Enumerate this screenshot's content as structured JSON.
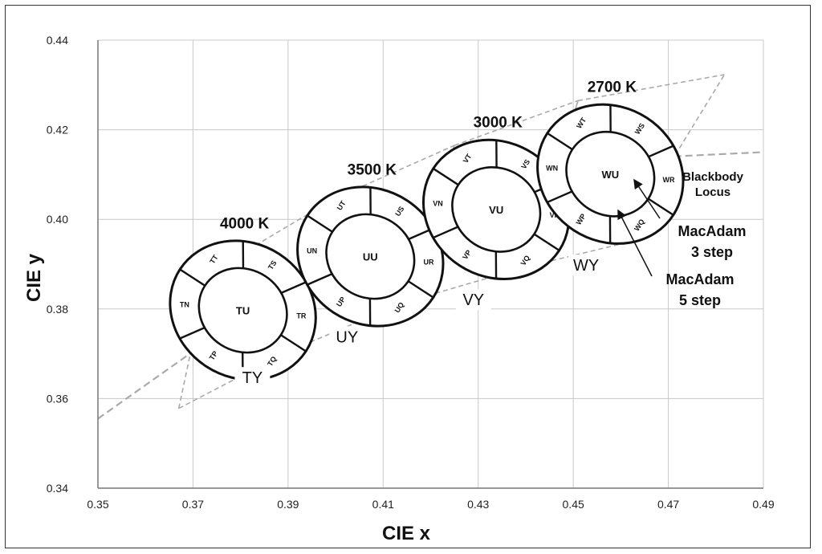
{
  "chart_data": {
    "type": "scatter",
    "xlabel": "CIE x",
    "ylabel": "CIE y",
    "xlim": [
      0.35,
      0.49
    ],
    "ylim": [
      0.34,
      0.44
    ],
    "x_ticks": [
      "0.35",
      "0.37",
      "0.39",
      "0.41",
      "0.43",
      "0.45",
      "0.47",
      "0.49"
    ],
    "y_ticks": [
      "0.34",
      "0.36",
      "0.38",
      "0.40",
      "0.42",
      "0.44"
    ],
    "x_grid": [
      0.37,
      0.39,
      0.41,
      0.43,
      0.45,
      0.47,
      0.49
    ],
    "y_grid": [
      0.36,
      0.38,
      0.4,
      0.42,
      0.44
    ],
    "blackbody_locus": {
      "label": "Blackbody Locus",
      "x": [
        0.35,
        0.37,
        0.39,
        0.41,
        0.43,
        0.45,
        0.47,
        0.49
      ],
      "y": [
        0.3555,
        0.3705,
        0.384,
        0.3945,
        0.4035,
        0.4105,
        0.414,
        0.415
      ]
    },
    "ansi_bins": [
      {
        "label": "TY",
        "label_at": [
          0.3825,
          0.3638
        ],
        "outline": [
          [
            0.367,
            0.3578
          ],
          [
            0.373,
            0.3878
          ],
          [
            0.3995,
            0.4045
          ],
          [
            0.39,
            0.3705
          ]
        ]
      },
      {
        "label": "UY",
        "label_at": [
          0.4024,
          0.3729
        ],
        "outline": [
          [
            0.39,
            0.3705
          ],
          [
            0.3995,
            0.4045
          ],
          [
            0.425,
            0.4165
          ],
          [
            0.4145,
            0.3815
          ]
        ]
      },
      {
        "label": "VY",
        "label_at": [
          0.429,
          0.3812
        ],
        "outline": [
          [
            0.4145,
            0.3815
          ],
          [
            0.425,
            0.4165
          ],
          [
            0.451,
            0.4265
          ],
          [
            0.4405,
            0.3895
          ]
        ]
      },
      {
        "label": "WY",
        "label_at": [
          0.4527,
          0.3889
        ],
        "outline": [
          [
            0.4405,
            0.3895
          ],
          [
            0.451,
            0.4265
          ],
          [
            0.4818,
            0.4323
          ],
          [
            0.46,
            0.3945
          ]
        ]
      }
    ],
    "series": [
      {
        "name": "4000 K",
        "center": "TU",
        "cx": 0.3805,
        "cy": 0.3797,
        "ellipse_deg": -57,
        "inner": [
          0.0086,
          0.0047
        ],
        "outer": [
          0.0141,
          0.0078
        ],
        "segments": [
          "TN",
          "TT",
          "TS",
          "TR",
          "TQ",
          "TP"
        ]
      },
      {
        "name": "3500 K",
        "center": "UU",
        "cx": 0.4073,
        "cy": 0.3917,
        "ellipse_deg": -57,
        "inner": [
          0.0086,
          0.0047
        ],
        "outer": [
          0.0141,
          0.0078
        ],
        "segments": [
          "UN",
          "UT",
          "US",
          "UR",
          "UQ",
          "UP"
        ]
      },
      {
        "name": "3000 K",
        "center": "VU",
        "cx": 0.4338,
        "cy": 0.4022,
        "ellipse_deg": -57,
        "inner": [
          0.0086,
          0.0047
        ],
        "outer": [
          0.0141,
          0.0078
        ],
        "segments": [
          "VN",
          "VT",
          "VS",
          "VR",
          "VQ",
          "VP"
        ]
      },
      {
        "name": "2700 K",
        "center": "WU",
        "cx": 0.4578,
        "cy": 0.4101,
        "ellipse_deg": -57,
        "inner": [
          0.0086,
          0.0047
        ],
        "outer": [
          0.0141,
          0.0078
        ],
        "segments": [
          "WN",
          "WT",
          "WS",
          "WR",
          "WQ",
          "WP"
        ]
      }
    ],
    "annotations": {
      "mac3_line1": "MacAdam",
      "mac3_line2": "3 step",
      "mac5_line1": "MacAdam",
      "mac5_line2": "5 step",
      "locus_line1": "Blackbody",
      "locus_line2": "Locus"
    },
    "colors": {
      "grid": "#c8c8c8",
      "dashed": "#aaaaaa",
      "ellipse": "#111111",
      "bin_edge": "#b0b0b0"
    }
  }
}
